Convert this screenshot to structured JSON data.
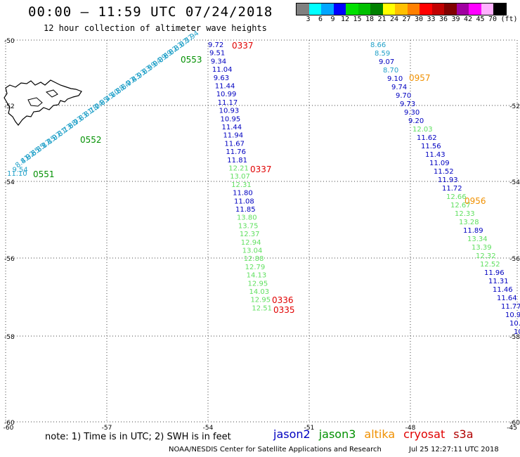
{
  "title": "00:00 – 11:59 UTC 07/24/2018",
  "subtitle": "12 hour collection of altimeter wave heights",
  "legend": {
    "colors": [
      "#808080",
      "#00ffff",
      "#00a6ff",
      "#0000ff",
      "#00e000",
      "#00c000",
      "#008000",
      "#ffff00",
      "#ffc000",
      "#ff8000",
      "#ff0000",
      "#c00000",
      "#800000",
      "#a000a0",
      "#ff00ff",
      "#ffb0ff",
      "#000000"
    ],
    "labels": [
      "3",
      "6",
      "9",
      "12",
      "15",
      "18",
      "21",
      "24",
      "27",
      "30",
      "33",
      "36",
      "39",
      "42",
      "45",
      "70",
      "(ft)"
    ]
  },
  "axes": {
    "lat_labels": [
      "-50",
      "-52",
      "-54",
      "-56",
      "-58",
      "-60"
    ],
    "lon_labels": [
      "-60",
      "-57",
      "-54",
      "-51",
      "-48",
      "-45"
    ],
    "lat_right_labels": [
      "-52",
      "-54",
      "-56",
      "-58",
      "-60"
    ]
  },
  "sat_colors": {
    "jason2": "#0000c0",
    "jason3": "#009000",
    "altika": "#f09000",
    "cryosat": "#e00000",
    "s3a": "#b00000",
    "j3light": "#60e060",
    "cyan": "#20a0c8"
  },
  "tracks": {
    "cyan_diag": {
      "color": "cyan",
      "values": [
        "11.10",
        "9.54",
        "8.41",
        "8.92",
        "8.65",
        "8.85",
        "8.17",
        "8.15",
        "8.07",
        "8.81",
        "8.13",
        "7.58",
        "8.93",
        "7.83",
        "6.81",
        "8.18",
        "7.04",
        "7.95",
        "6.45",
        "7.70",
        "6.88",
        "8.84",
        "6.97",
        "7.43",
        "8.93",
        "9.83",
        "8.59",
        "9.04",
        "9.09",
        "8.69",
        "8.02",
        "8.03",
        "8.07",
        "8.37",
        "7.94"
      ]
    },
    "track1": [
      {
        "v": "9.72",
        "c": "jason2"
      },
      {
        "v": "9.51",
        "c": "jason2"
      },
      {
        "v": "9.34",
        "c": "jason2"
      },
      {
        "v": "11.04",
        "c": "jason2"
      },
      {
        "v": "9.63",
        "c": "jason2"
      },
      {
        "v": "11.44",
        "c": "jason2"
      },
      {
        "v": "10.99",
        "c": "jason2"
      },
      {
        "v": "11.17",
        "c": "jason2"
      },
      {
        "v": "10.93",
        "c": "jason2"
      },
      {
        "v": "10.95",
        "c": "jason2"
      },
      {
        "v": "11.44",
        "c": "jason2"
      },
      {
        "v": "11.94",
        "c": "jason2"
      },
      {
        "v": "11.67",
        "c": "jason2"
      },
      {
        "v": "11.76",
        "c": "jason2"
      },
      {
        "v": "11.81",
        "c": "jason2"
      },
      {
        "v": "12.21",
        "c": "j3light"
      },
      {
        "v": "13.07",
        "c": "j3light"
      },
      {
        "v": "12.31",
        "c": "j3light"
      },
      {
        "v": "11.80",
        "c": "jason2"
      },
      {
        "v": "11.08",
        "c": "jason2"
      },
      {
        "v": "11.85",
        "c": "jason2"
      },
      {
        "v": "13.80",
        "c": "j3light"
      },
      {
        "v": "13.75",
        "c": "j3light"
      },
      {
        "v": "12.37",
        "c": "j3light"
      },
      {
        "v": "12.94",
        "c": "j3light"
      },
      {
        "v": "13.04",
        "c": "j3light"
      },
      {
        "v": "12.88",
        "c": "j3light"
      },
      {
        "v": "12.79",
        "c": "j3light"
      },
      {
        "v": "14.13",
        "c": "j3light"
      },
      {
        "v": "12.95",
        "c": "j3light"
      },
      {
        "v": "14.03",
        "c": "j3light"
      },
      {
        "v": "12.95",
        "c": "j3light"
      },
      {
        "v": "12.51",
        "c": "j3light"
      }
    ],
    "track2": [
      {
        "v": "8.66",
        "c": "cyan"
      },
      {
        "v": "8.59",
        "c": "cyan"
      },
      {
        "v": "9.07",
        "c": "jason2"
      },
      {
        "v": "8.70",
        "c": "cyan"
      },
      {
        "v": "9.10",
        "c": "jason2"
      },
      {
        "v": "9.74",
        "c": "jason2"
      },
      {
        "v": "9.70",
        "c": "jason2"
      },
      {
        "v": "9.73",
        "c": "jason2"
      },
      {
        "v": "9.30",
        "c": "jason2"
      },
      {
        "v": "9.20",
        "c": "jason2"
      },
      {
        "v": "12.03",
        "c": "j3light"
      },
      {
        "v": "11.62",
        "c": "jason2"
      },
      {
        "v": "11.56",
        "c": "jason2"
      },
      {
        "v": "11.43",
        "c": "jason2"
      },
      {
        "v": "11.09",
        "c": "jason2"
      },
      {
        "v": "11.52",
        "c": "jason2"
      },
      {
        "v": "11.93",
        "c": "jason2"
      },
      {
        "v": "11.72",
        "c": "jason2"
      },
      {
        "v": "12.66",
        "c": "j3light"
      },
      {
        "v": "12.67",
        "c": "j3light"
      },
      {
        "v": "12.33",
        "c": "j3light"
      },
      {
        "v": "13.28",
        "c": "j3light"
      },
      {
        "v": "11.89",
        "c": "jason2"
      },
      {
        "v": "13.34",
        "c": "j3light"
      },
      {
        "v": "13.39",
        "c": "j3light"
      },
      {
        "v": "12.32",
        "c": "j3light"
      },
      {
        "v": "12.52",
        "c": "j3light"
      },
      {
        "v": "11.96",
        "c": "jason2"
      },
      {
        "v": "11.31",
        "c": "jason2"
      },
      {
        "v": "11.46",
        "c": "jason2"
      },
      {
        "v": "11.64",
        "c": "jason2"
      },
      {
        "v": "11.77",
        "c": "jason2"
      },
      {
        "v": "10.9",
        "c": "jason2"
      },
      {
        "v": "10.",
        "c": "jason2"
      },
      {
        "v": "10",
        "c": "jason2"
      }
    ]
  },
  "time_labels": [
    {
      "t": "0551",
      "c": "jason3"
    },
    {
      "t": "0552",
      "c": "jason3"
    },
    {
      "t": "0553",
      "c": "jason3"
    },
    {
      "t": "0337",
      "c": "cryosat"
    },
    {
      "t": "0337",
      "c": "cryosat"
    },
    {
      "t": "0336",
      "c": "cryosat"
    },
    {
      "t": "0335",
      "c": "cryosat"
    },
    {
      "t": "0957",
      "c": "altika"
    },
    {
      "t": "0956",
      "c": "altika"
    }
  ],
  "note": "note: 1) Time is in UTC; 2) SWH is in feet",
  "satellites": [
    {
      "name": "jason2",
      "color": "#0000c0"
    },
    {
      "name": "jason3",
      "color": "#009000"
    },
    {
      "name": "altika",
      "color": "#f09000"
    },
    {
      "name": "cryosat",
      "color": "#e00000"
    },
    {
      "name": "s3a",
      "color": "#b00000"
    }
  ],
  "credit": "NOAA/NESDIS Center for Satellite Applications and Research",
  "timestamp": "Jul 25 12:27:11 UTC 2018"
}
